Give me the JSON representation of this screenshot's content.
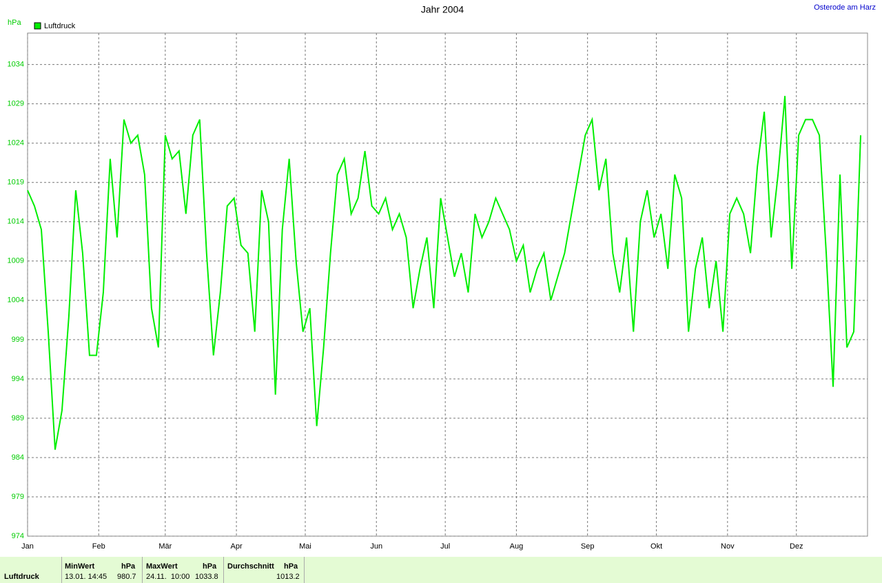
{
  "chart_data": {
    "type": "line",
    "title": "Jahr 2004",
    "subtitle": "Osterode am Harz",
    "y_label": "hPa",
    "xlim": [
      0,
      366
    ],
    "xticks": [
      {
        "value": 0,
        "label": "Jan"
      },
      {
        "value": 31,
        "label": "Feb"
      },
      {
        "value": 60,
        "label": "Mär"
      },
      {
        "value": 91,
        "label": "Apr"
      },
      {
        "value": 121,
        "label": "Mai"
      },
      {
        "value": 152,
        "label": "Jun"
      },
      {
        "value": 182,
        "label": "Jul"
      },
      {
        "value": 213,
        "label": "Aug"
      },
      {
        "value": 244,
        "label": "Sep"
      },
      {
        "value": 274,
        "label": "Okt"
      },
      {
        "value": 305,
        "label": "Nov"
      },
      {
        "value": 335,
        "label": "Dez"
      }
    ],
    "ylim": [
      974,
      1038
    ],
    "yticks": [
      974,
      979,
      984,
      989,
      994,
      999,
      1004,
      1009,
      1014,
      1019,
      1024,
      1029,
      1034
    ],
    "grid": true,
    "x": [
      0,
      3,
      6,
      9,
      12,
      15,
      18,
      21,
      24,
      27,
      30,
      33,
      36,
      39,
      42,
      45,
      48,
      51,
      54,
      57,
      60,
      63,
      66,
      69,
      72,
      75,
      78,
      81,
      84,
      87,
      90,
      93,
      96,
      99,
      102,
      105,
      108,
      111,
      114,
      117,
      120,
      123,
      126,
      129,
      132,
      135,
      138,
      141,
      144,
      147,
      150,
      153,
      156,
      159,
      162,
      165,
      168,
      171,
      174,
      177,
      180,
      183,
      186,
      189,
      192,
      195,
      198,
      201,
      204,
      207,
      210,
      213,
      216,
      219,
      222,
      225,
      228,
      231,
      234,
      237,
      240,
      243,
      246,
      249,
      252,
      255,
      258,
      261,
      264,
      267,
      270,
      273,
      276,
      279,
      282,
      285,
      288,
      291,
      294,
      297,
      300,
      303,
      306,
      309,
      312,
      315,
      318,
      321,
      324,
      327,
      330,
      333,
      336,
      339,
      342,
      345,
      348,
      351,
      354,
      357,
      360,
      363
    ],
    "series": [
      {
        "name": "Luftdruck",
        "color": "#00ee00",
        "values": [
          1018,
          1016,
          1013,
          1000,
          985,
          990,
          1002,
          1018,
          1010,
          997,
          997,
          1005,
          1022,
          1012,
          1027,
          1024,
          1025,
          1020,
          1003,
          998,
          1025,
          1022,
          1023,
          1015,
          1025,
          1027,
          1010,
          997,
          1005,
          1016,
          1017,
          1011,
          1010,
          1000,
          1018,
          1014,
          992,
          1013,
          1022,
          1009,
          1000,
          1003,
          988,
          998,
          1010,
          1020,
          1022,
          1015,
          1017,
          1023,
          1016,
          1015,
          1017,
          1013,
          1015,
          1012,
          1003,
          1008,
          1012,
          1003,
          1017,
          1012,
          1007,
          1010,
          1005,
          1015,
          1012,
          1014,
          1017,
          1015,
          1013,
          1009,
          1011,
          1005,
          1008,
          1010,
          1004,
          1007,
          1010,
          1015,
          1020,
          1025,
          1027,
          1018,
          1022,
          1010,
          1005,
          1012,
          1000,
          1014,
          1018,
          1012,
          1015,
          1008,
          1020,
          1017,
          1000,
          1008,
          1012,
          1003,
          1009,
          1000,
          1015,
          1017,
          1015,
          1010,
          1021,
          1028,
          1012,
          1020,
          1030,
          1008,
          1025,
          1027,
          1027,
          1025,
          1010,
          993,
          1020,
          998,
          1000,
          1025
        ]
      }
    ]
  },
  "summary": {
    "row_label": "Luftdruck",
    "min": {
      "header": "MinWert",
      "unit": "hPa",
      "time": "13.01.  14:45",
      "value": "980.7"
    },
    "max": {
      "header": "MaxWert",
      "unit": "hPa",
      "time": "24.11.  10:00",
      "value": "1033.8"
    },
    "avg": {
      "header": "Durchschnitt",
      "unit": "hPa",
      "value": "1013.2"
    }
  }
}
